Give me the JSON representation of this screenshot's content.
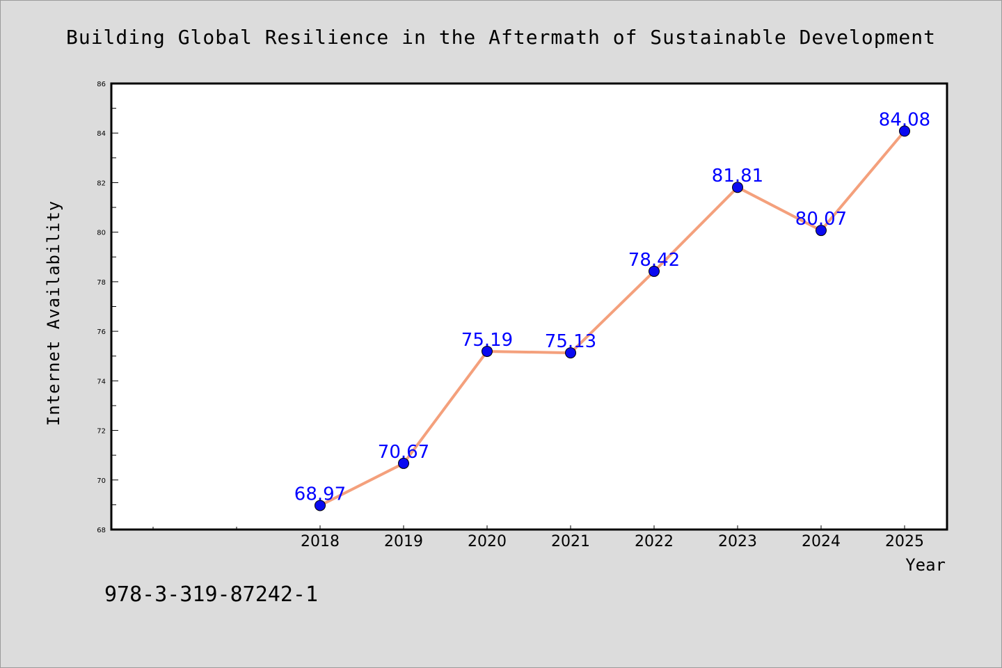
{
  "chart_data": {
    "type": "line",
    "title": "Building Global Resilience in the Aftermath of Sustainable Development",
    "xlabel": "Year",
    "ylabel": "Internet Availability",
    "x": [
      "2018",
      "2019",
      "2020",
      "2021",
      "2022",
      "2023",
      "2024",
      "2025"
    ],
    "series": [
      {
        "values": [
          68.97,
          70.67,
          75.19,
          75.13,
          78.42,
          81.81,
          80.07,
          84.08
        ]
      }
    ],
    "data_labels": [
      "68.97",
      "70.67",
      "75.19",
      "75.13",
      "78.42",
      "81.81",
      "80.07",
      "84.08"
    ],
    "ylim": [
      68,
      86
    ],
    "yticks": [
      "68",
      "70",
      "72",
      "74",
      "76",
      "78",
      "80",
      "82",
      "84",
      "86"
    ],
    "grid": false,
    "line_color": "#f4a07c",
    "marker_color": "#0a0af0",
    "label_color": "#0000ff"
  },
  "footer_text": "978-3-319-87242-1"
}
